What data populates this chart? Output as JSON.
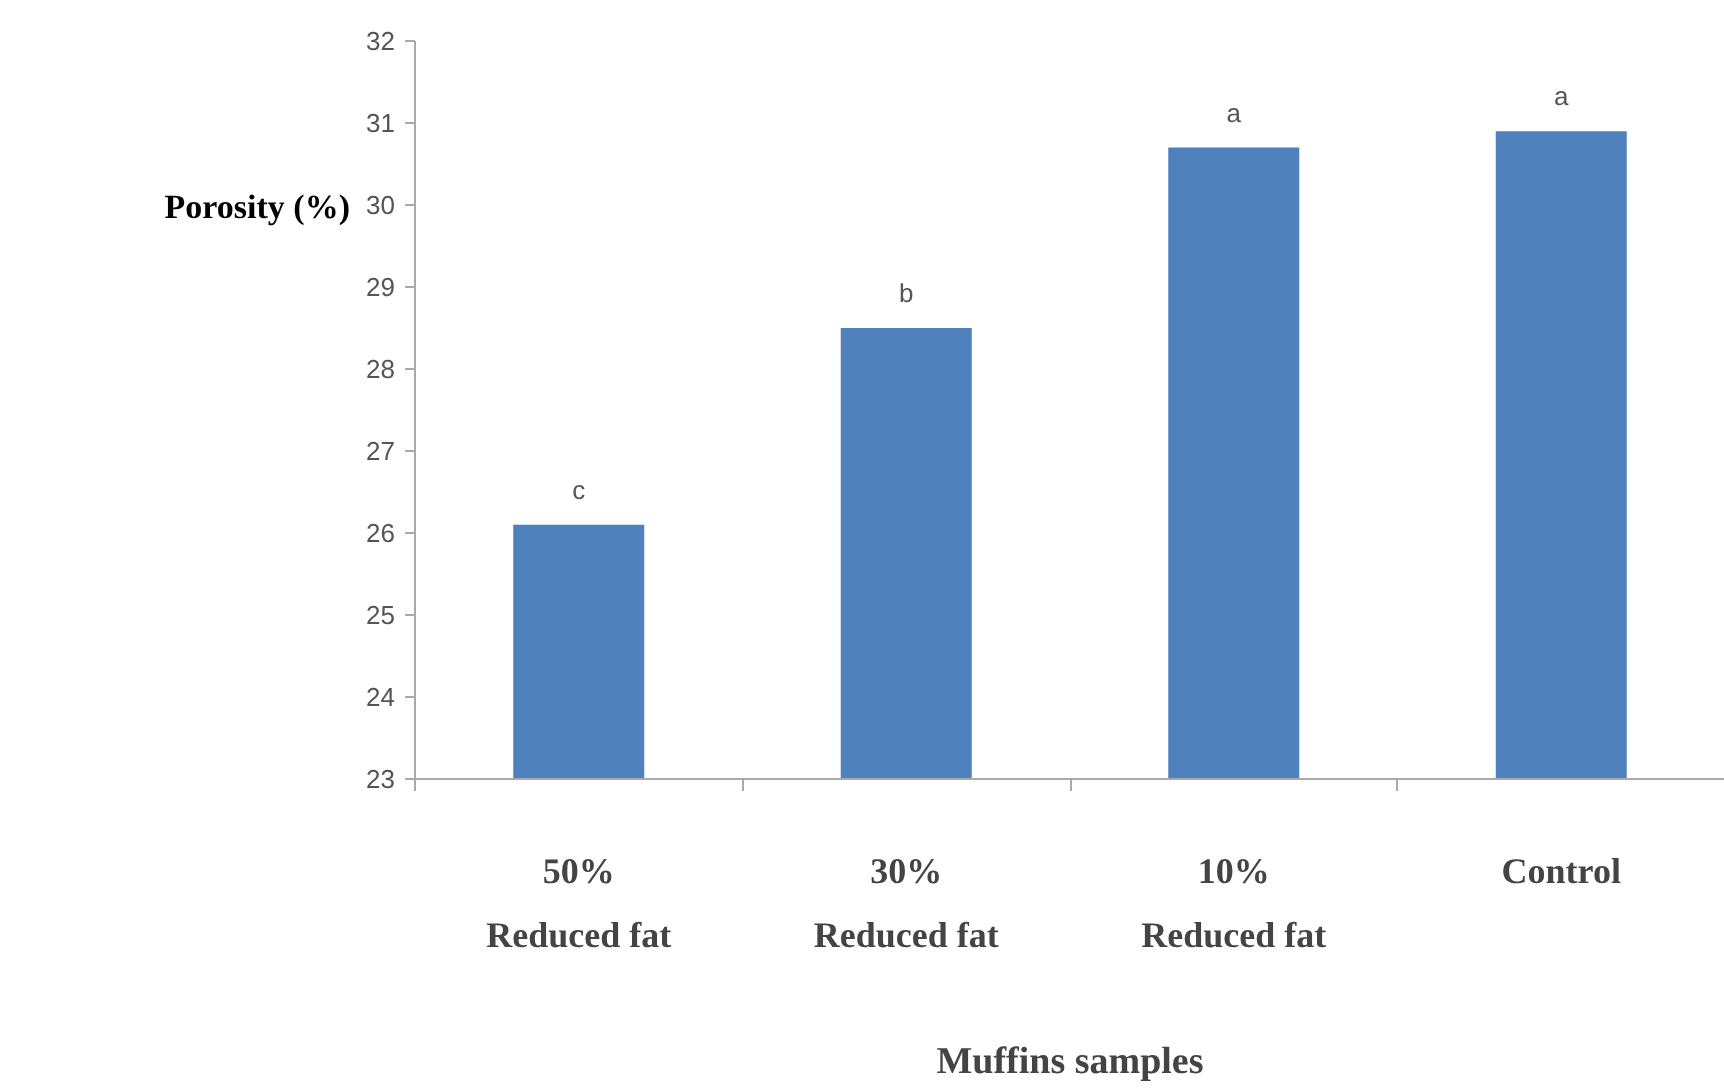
{
  "chart_data": {
    "type": "bar",
    "xlabel": "Muffins samples",
    "ylabel": "Porosity (%)",
    "categories": [
      "50%\nReduced fat",
      "30%\nReduced fat",
      "10%\nReduced fat",
      "Control"
    ],
    "values": [
      26.1,
      28.5,
      30.7,
      30.9
    ],
    "color": "#4f81bd",
    "ylim": [
      23,
      32
    ],
    "yticks": [
      23,
      24,
      25,
      26,
      27,
      28,
      29,
      30,
      31,
      32
    ],
    "grid": false,
    "annotations": [
      {
        "text": "c",
        "x": "50%\nReduced fat",
        "y": 26.1
      },
      {
        "text": "b",
        "x": "30%\nReduced fat",
        "y": 28.5
      },
      {
        "text": "a",
        "x": "10%\nReduced fat",
        "y": 30.7
      },
      {
        "text": "a",
        "x": "Control",
        "y": 30.9
      }
    ]
  }
}
